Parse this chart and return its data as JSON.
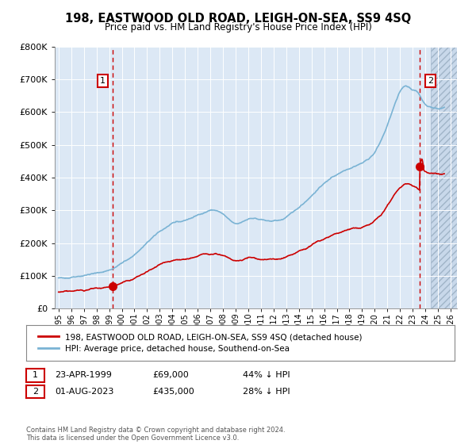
{
  "title": "198, EASTWOOD OLD ROAD, LEIGH-ON-SEA, SS9 4SQ",
  "subtitle": "Price paid vs. HM Land Registry's House Price Index (HPI)",
  "legend_line1": "198, EASTWOOD OLD ROAD, LEIGH-ON-SEA, SS9 4SQ (detached house)",
  "legend_line2": "HPI: Average price, detached house, Southend-on-Sea",
  "annotation1_date": "23-APR-1999",
  "annotation1_price": "£69,000",
  "annotation1_hpi": "44% ↓ HPI",
  "annotation2_date": "01-AUG-2023",
  "annotation2_price": "£435,000",
  "annotation2_hpi": "28% ↓ HPI",
  "footer": "Contains HM Land Registry data © Crown copyright and database right 2024.\nThis data is licensed under the Open Government Licence v3.0.",
  "sale1_x": 1999.31,
  "sale1_y": 69000,
  "sale2_x": 2023.58,
  "sale2_y": 435000,
  "hpi_color": "#7ab3d4",
  "price_color": "#cc0000",
  "vline_color": "#cc0000",
  "bg_plot": "#dce8f5",
  "bg_hatch_color": "#c8d8ea",
  "ylim": [
    0,
    800000
  ],
  "xlim_start": 1994.7,
  "xlim_end": 2026.5,
  "hatch_start": 2024.42,
  "year_tick_start": 1995,
  "year_tick_end": 2026
}
